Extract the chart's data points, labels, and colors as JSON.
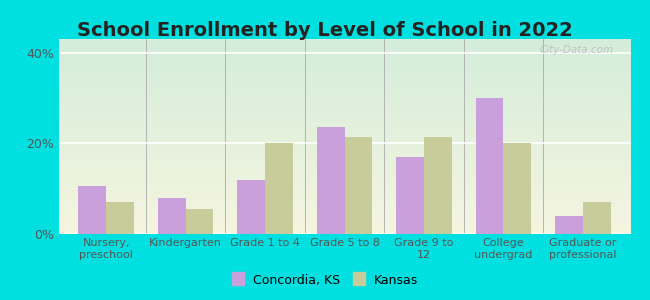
{
  "title": "School Enrollment by Level of School in 2022",
  "categories": [
    "Nursery,\npreschool",
    "Kindergarten",
    "Grade 1 to 4",
    "Grade 5 to 8",
    "Grade 9 to\n12",
    "College\nundergrad",
    "Graduate or\nprofessional"
  ],
  "concordia_values": [
    10.5,
    8.0,
    12.0,
    23.5,
    17.0,
    30.0,
    4.0
  ],
  "kansas_values": [
    7.0,
    5.5,
    20.0,
    21.5,
    21.5,
    20.0,
    7.0
  ],
  "concordia_color": "#c9a0dc",
  "kansas_color": "#c8cc9a",
  "background_outer": "#00e0e0",
  "background_inner_gradient_top": "#d4edda",
  "background_inner_gradient_bottom": "#f5f5e0",
  "ylim": [
    0,
    43
  ],
  "yticks": [
    0,
    20,
    40
  ],
  "ytick_labels": [
    "0%",
    "20%",
    "40%"
  ],
  "legend_label_concordia": "Concordia, KS",
  "legend_label_kansas": "Kansas",
  "watermark": "City-Data.com",
  "title_fontsize": 14,
  "title_color": "#222222",
  "label_fontsize": 8,
  "tick_color": "#555555"
}
